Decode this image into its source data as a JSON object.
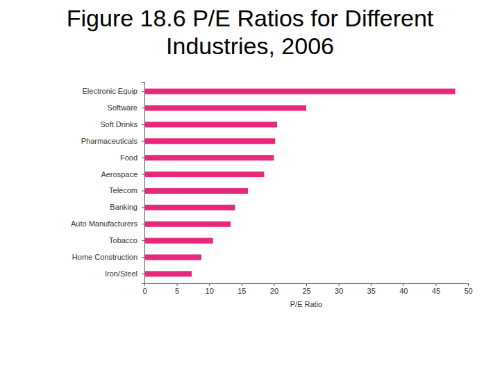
{
  "chart_data": {
    "type": "bar",
    "title": "Figure 18.6 P/E Ratios for Different Industries, 2006",
    "orientation": "horizontal",
    "categories": [
      "Electronic Equip",
      "Software",
      "Soft Drinks",
      "Pharmaceuticals",
      "Food",
      "Aerospace",
      "Telecom",
      "Banking",
      "Auto Manufacturers",
      "Tobacco",
      "Home Construction",
      "Iron/Steel"
    ],
    "values": [
      48,
      25,
      20.5,
      20.2,
      20,
      18.5,
      16,
      14,
      13.3,
      10.6,
      8.8,
      7.3
    ],
    "color": "#e8287c",
    "xlabel": "P/E Ratio",
    "xlim": [
      0,
      50
    ],
    "xticks": [
      0,
      5,
      10,
      15,
      20,
      25,
      30,
      35,
      40,
      45,
      50
    ],
    "grid": false
  }
}
